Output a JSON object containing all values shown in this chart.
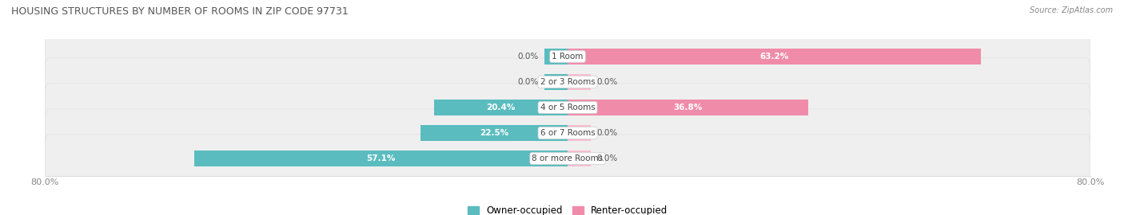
{
  "title": "HOUSING STRUCTURES BY NUMBER OF ROOMS IN ZIP CODE 97731",
  "source": "Source: ZipAtlas.com",
  "categories": [
    "1 Room",
    "2 or 3 Rooms",
    "4 or 5 Rooms",
    "6 or 7 Rooms",
    "8 or more Rooms"
  ],
  "owner_values": [
    0.0,
    0.0,
    20.4,
    22.5,
    57.1
  ],
  "renter_values": [
    63.2,
    0.0,
    36.8,
    0.0,
    0.0
  ],
  "owner_color": "#5bbcbf",
  "renter_color": "#f08caa",
  "renter_color_light": "#f7bece",
  "row_bg_color": "#efefef",
  "row_bg_border": "#e0e0e0",
  "xlim_left": -80.0,
  "xlim_right": 80.0,
  "stub_size": 3.5,
  "min_inside_label_bar": 12.0,
  "title_fontsize": 9,
  "label_fontsize": 7.5,
  "value_fontsize": 7.5,
  "tick_fontsize": 8,
  "source_fontsize": 7
}
